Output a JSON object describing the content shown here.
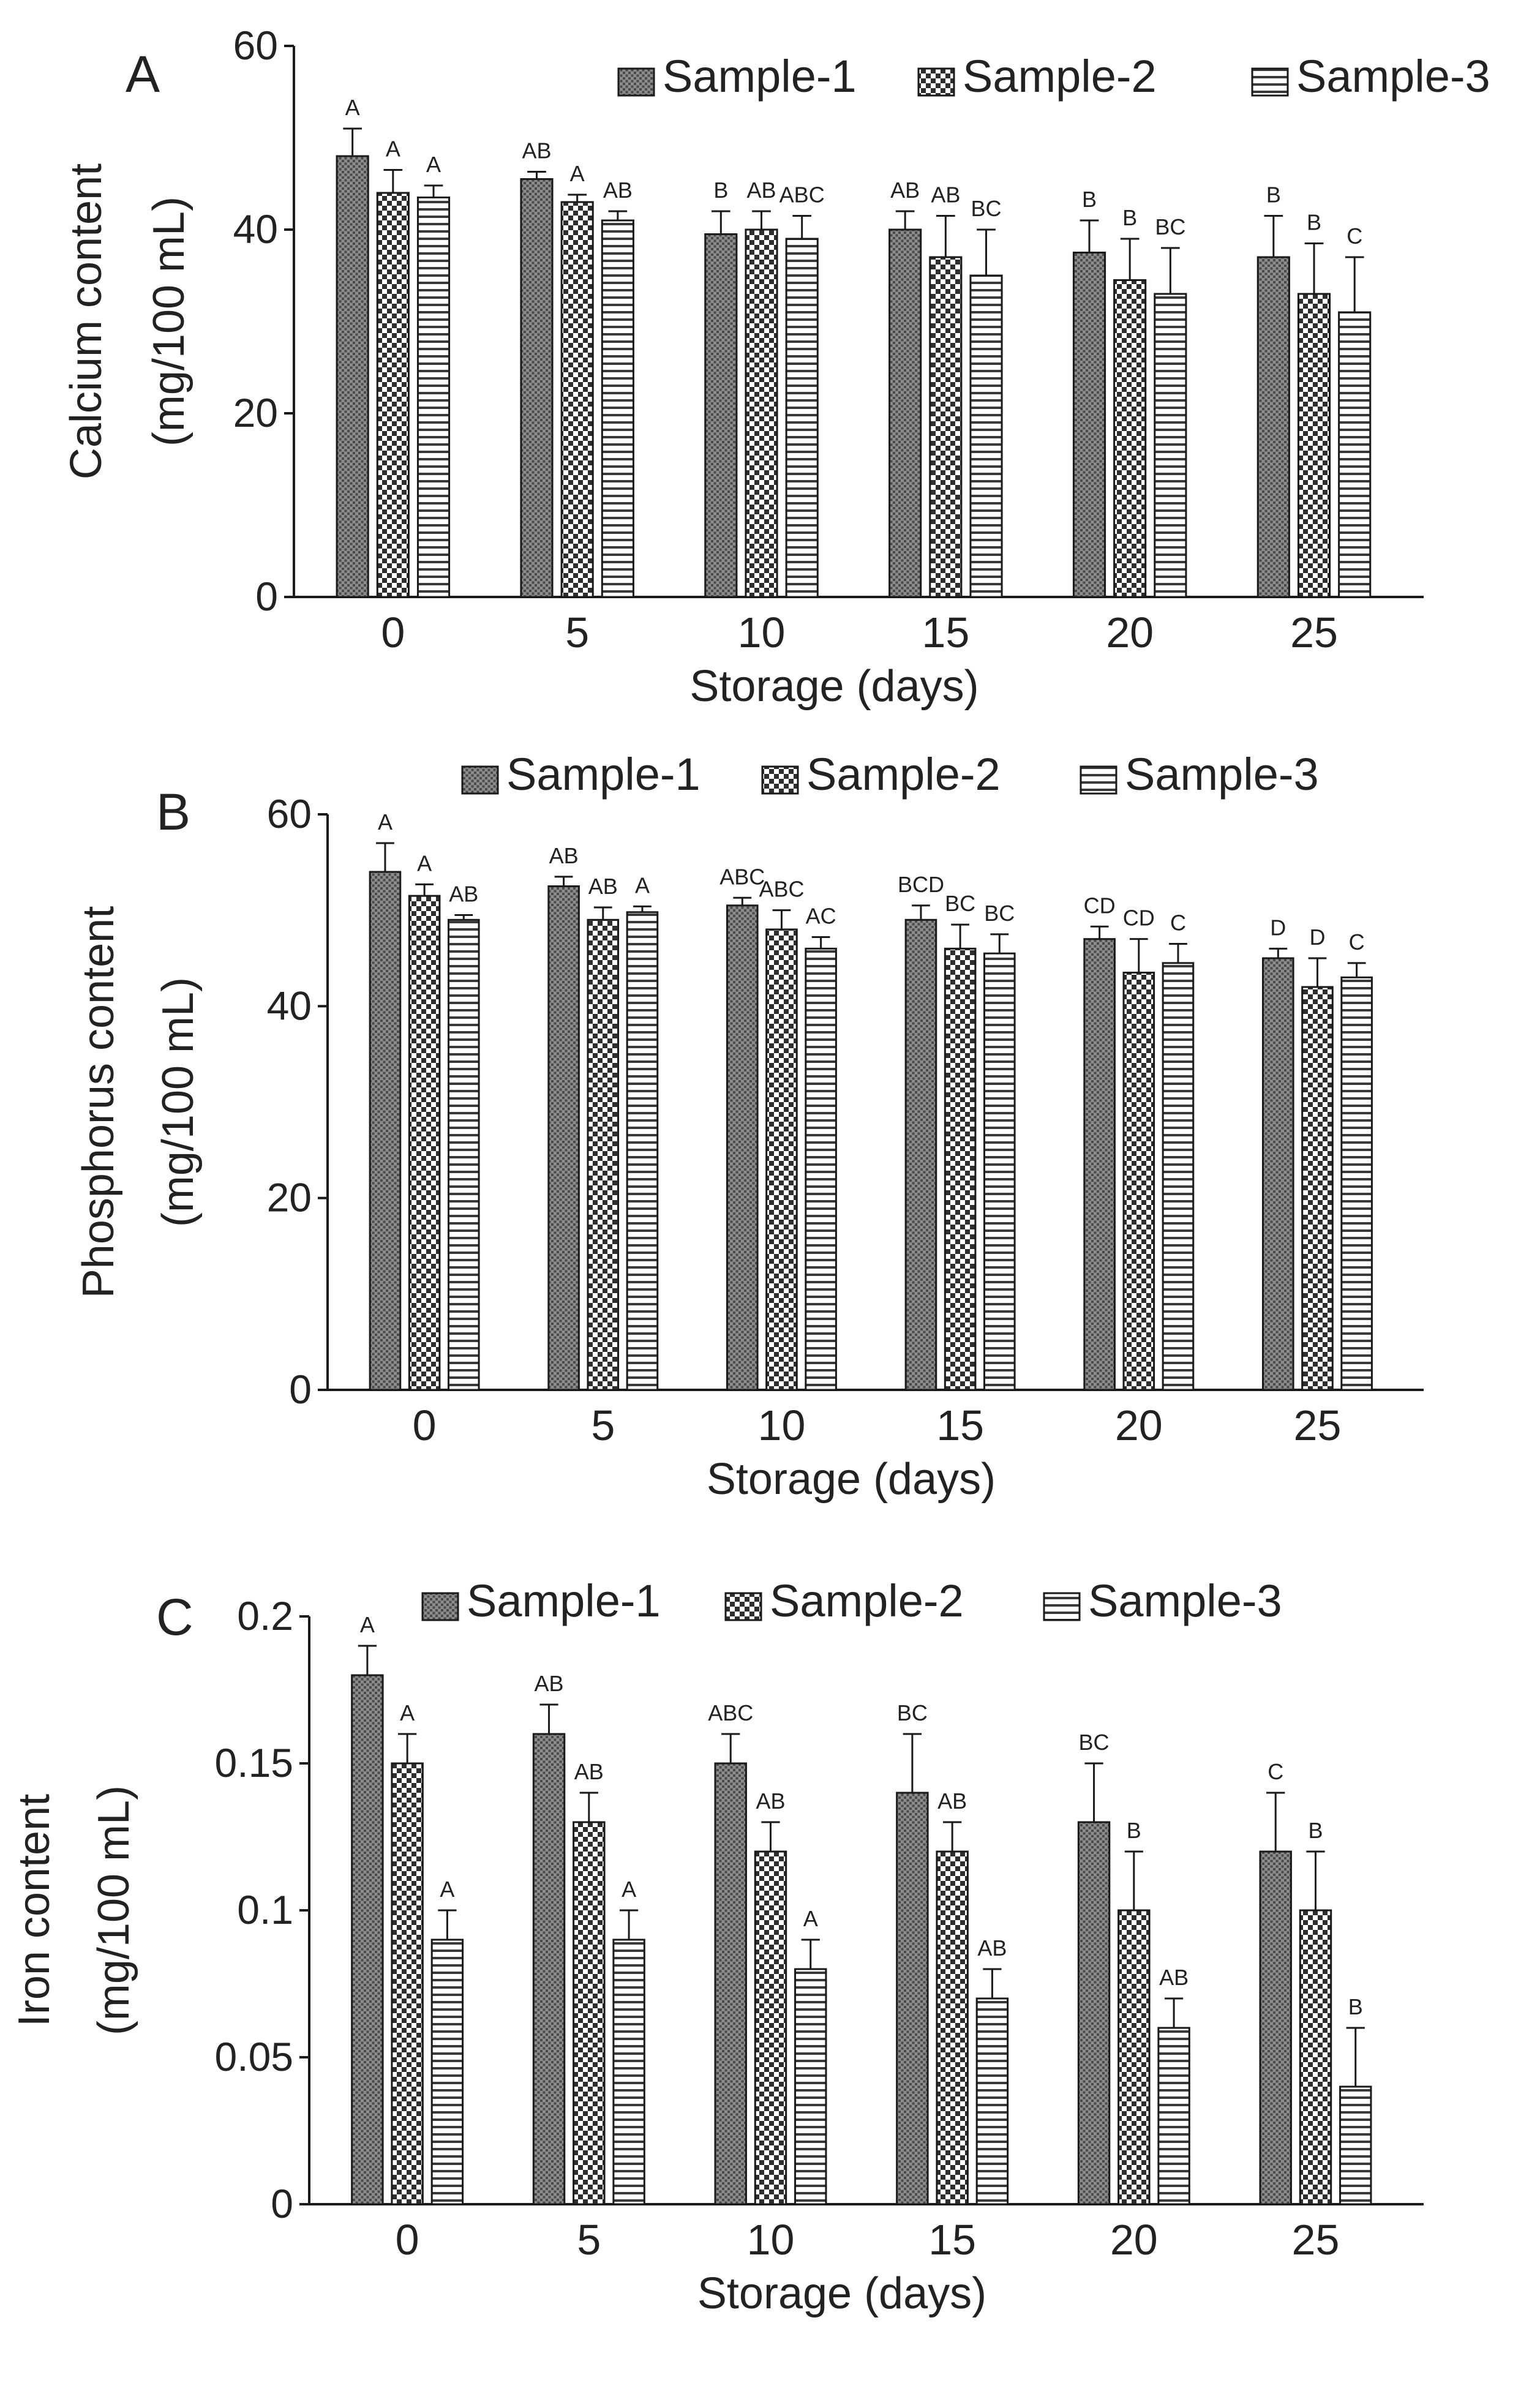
{
  "figure": {
    "type": "grouped bar charts with error bars"
  },
  "colors": {
    "bar_fill": "#ffffff",
    "stroke": "#1a1a1a",
    "pattern_dark": "#555555"
  },
  "chart_data": [
    {
      "type": "bar",
      "panel": "A",
      "title": "",
      "xlabel": "Storage (days)",
      "ylabel_line1": "Calcium content",
      "ylabel_line2": "(mg/100 mL)",
      "categories": [
        "0",
        "5",
        "10",
        "15",
        "20",
        "25"
      ],
      "ylim": [
        0,
        60
      ],
      "yticks": [
        "0",
        "20",
        "40",
        "60"
      ],
      "legend_position": "top",
      "series": [
        {
          "name": "Sample-1",
          "values": [
            48,
            45.5,
            39.5,
            40,
            37.5,
            37
          ],
          "errors": [
            3,
            0.8,
            2.5,
            2,
            3.5,
            4.5
          ],
          "labels": [
            "A",
            "AB",
            "B",
            "AB",
            "B",
            "B"
          ]
        },
        {
          "name": "Sample-2",
          "values": [
            44,
            43,
            40,
            37,
            34.5,
            33
          ],
          "errors": [
            2.5,
            0.8,
            2,
            4.5,
            4.5,
            5.5
          ],
          "labels": [
            "A",
            "A",
            "AB",
            "AB",
            "B",
            "B"
          ]
        },
        {
          "name": "Sample-3",
          "values": [
            43.5,
            41,
            39,
            35,
            33,
            31
          ],
          "errors": [
            1.3,
            1,
            2.5,
            5,
            5,
            6
          ],
          "labels": [
            "A",
            "AB",
            "ABC",
            "BC",
            "BC",
            "C"
          ]
        }
      ]
    },
    {
      "type": "bar",
      "panel": "B",
      "title": "",
      "xlabel": "Storage (days)",
      "ylabel_line1": "Phosphorus content",
      "ylabel_line2": "(mg/100 mL)",
      "categories": [
        "0",
        "5",
        "10",
        "15",
        "20",
        "25"
      ],
      "ylim": [
        0,
        60
      ],
      "yticks": [
        "0",
        "20",
        "40",
        "60"
      ],
      "legend_position": "top",
      "series": [
        {
          "name": "Sample-1",
          "values": [
            54,
            52.5,
            50.5,
            49,
            47,
            45
          ],
          "errors": [
            3,
            1,
            0.8,
            1.5,
            1.3,
            1
          ],
          "labels": [
            "A",
            "AB",
            "ABC",
            "BCD",
            "CD",
            "D"
          ]
        },
        {
          "name": "Sample-2",
          "values": [
            51.5,
            49,
            48,
            46,
            43.5,
            42
          ],
          "errors": [
            1.2,
            1.3,
            2,
            2.5,
            3.5,
            3
          ],
          "labels": [
            "A",
            "AB",
            "ABC",
            "BC",
            "CD",
            "D"
          ]
        },
        {
          "name": "Sample-3",
          "values": [
            49,
            49.8,
            46,
            45.5,
            44.5,
            43
          ],
          "errors": [
            0.5,
            0.6,
            1.2,
            2,
            2,
            1.5
          ],
          "labels": [
            "AB",
            "A",
            "AC",
            "BC",
            "C",
            "C"
          ]
        }
      ]
    },
    {
      "type": "bar",
      "panel": "C",
      "title": "",
      "xlabel": "Storage (days)",
      "ylabel_line1": "Iron content",
      "ylabel_line2": "(mg/100 mL)",
      "categories": [
        "0",
        "5",
        "10",
        "15",
        "20",
        "25"
      ],
      "ylim": [
        0,
        0.2
      ],
      "yticks": [
        "0",
        "0.05",
        "0.1",
        "0.15",
        "0.2"
      ],
      "legend_position": "top",
      "series": [
        {
          "name": "Sample-1",
          "values": [
            0.18,
            0.16,
            0.15,
            0.14,
            0.13,
            0.12
          ],
          "errors": [
            0.01,
            0.01,
            0.01,
            0.02,
            0.02,
            0.02
          ],
          "labels": [
            "A",
            "AB",
            "ABC",
            "BC",
            "BC",
            "C"
          ]
        },
        {
          "name": "Sample-2",
          "values": [
            0.15,
            0.13,
            0.12,
            0.12,
            0.1,
            0.1
          ],
          "errors": [
            0.01,
            0.01,
            0.01,
            0.01,
            0.02,
            0.02
          ],
          "labels": [
            "A",
            "AB",
            "AB",
            "AB",
            "B",
            "B"
          ]
        },
        {
          "name": "Sample-3",
          "values": [
            0.09,
            0.09,
            0.08,
            0.07,
            0.06,
            0.04
          ],
          "errors": [
            0.01,
            0.01,
            0.01,
            0.01,
            0.01,
            0.02
          ],
          "labels": [
            "A",
            "A",
            "A",
            "AB",
            "AB",
            "B"
          ]
        }
      ]
    }
  ]
}
